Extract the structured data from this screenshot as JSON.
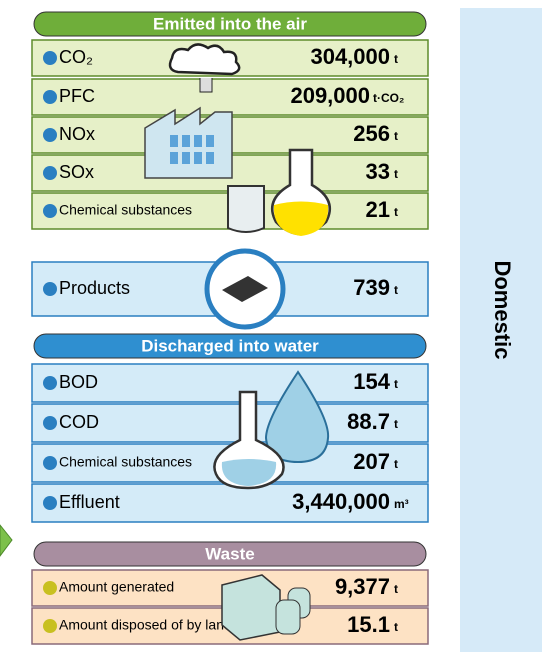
{
  "side_label": "Domestic",
  "sections": [
    {
      "title": "Emitted into the air",
      "rows": [
        {
          "label": "CO₂",
          "value": "304,000",
          "unit": "t"
        },
        {
          "label": "PFC",
          "value": "209,000",
          "unit": "t·CO₂"
        },
        {
          "label": "NOx",
          "value": "256",
          "unit": "t"
        },
        {
          "label": "SOx",
          "value": "33",
          "unit": "t"
        },
        {
          "label": "Chemical substances",
          "value": "21",
          "unit": "t"
        }
      ]
    },
    {
      "rows": [
        {
          "label": "Products",
          "value": "739",
          "unit": "t"
        }
      ]
    },
    {
      "title": "Discharged into water",
      "rows": [
        {
          "label": "BOD",
          "value": "154",
          "unit": "t"
        },
        {
          "label": "COD",
          "value": "88.7",
          "unit": "t"
        },
        {
          "label": "Chemical substances",
          "value": "207",
          "unit": "t"
        },
        {
          "label": "Effluent",
          "value": "3,440,000",
          "unit": "m³"
        }
      ]
    },
    {
      "title": "Waste",
      "rows": [
        {
          "label": "Amount generated",
          "value": "9,377",
          "unit": "t"
        },
        {
          "label": "Amount disposed of by landfill",
          "value": "15.1",
          "unit": "t"
        }
      ]
    }
  ]
}
